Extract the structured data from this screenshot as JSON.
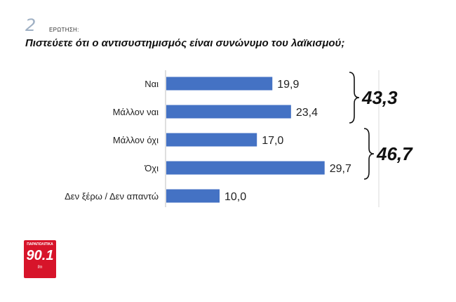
{
  "question": {
    "number": "2",
    "label": "ΕΡΩΤΗΣΗ:",
    "text": "Πιστεύετε ότι ο αντισυστημισμός είναι συνώνυμο του λαϊκισμού;"
  },
  "logo": {
    "top_text": "ΠΑΡΑΠΟΛΙΤΙΚΑ",
    "frequency": "90.1",
    "unit": "fm"
  },
  "colors": {
    "bar": "#4472c4",
    "axis": "#bfbfbf",
    "text": "#222222"
  },
  "chart_data": {
    "type": "bar",
    "orientation": "horizontal",
    "categories": [
      "Ναι",
      "Μάλλον ναι",
      "Μάλλον όχι",
      "Όχι",
      "Δεν ξέρω / Δεν απαντώ"
    ],
    "values": [
      19.9,
      23.4,
      17.0,
      29.7,
      10.0
    ],
    "value_labels": [
      "19,9",
      "23,4",
      "17,0",
      "29,7",
      "10,0"
    ],
    "xlim": [
      0,
      35
    ],
    "grid": false,
    "legend": "none",
    "annotations": [
      {
        "text": "43,3",
        "groups": [
          0,
          1
        ]
      },
      {
        "text": "46,7",
        "groups": [
          2,
          3
        ]
      }
    ]
  }
}
